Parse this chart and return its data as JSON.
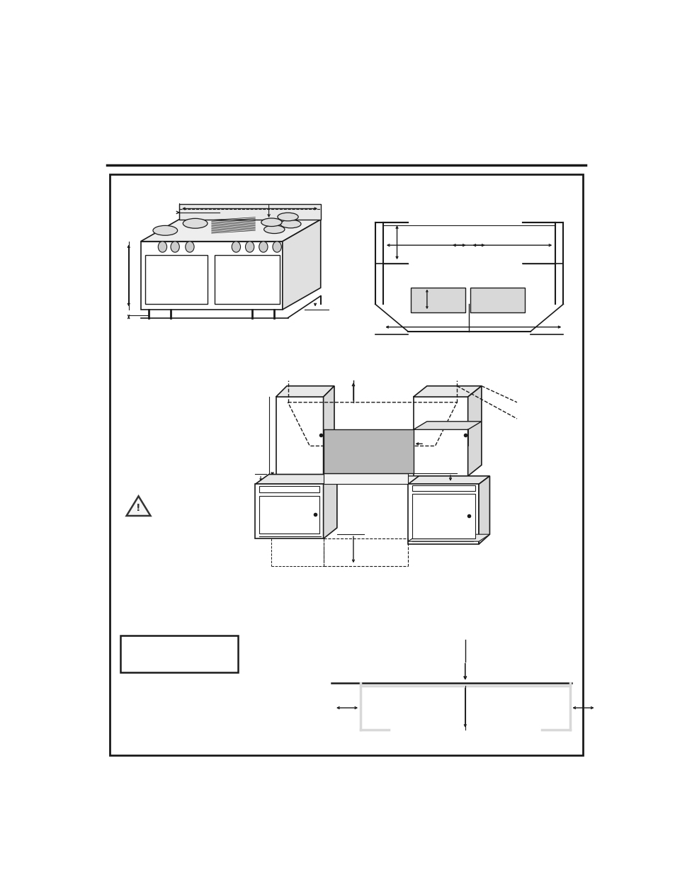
{
  "bg_color": "#ffffff",
  "line_color": "#1a1a1a",
  "gray_fill": "#b8b8b8",
  "light_gray": "#d8d8d8",
  "mid_gray": "#999999"
}
